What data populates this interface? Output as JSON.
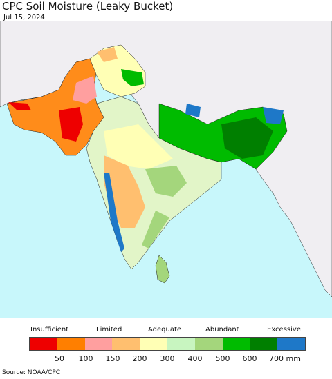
{
  "header": {
    "title": "CPC Soil Moisture (Leaky Bucket)",
    "date": "Jul 15, 2024"
  },
  "legend": {
    "categories": [
      "Insufficient",
      "Limited",
      "Adequate",
      "Abundant",
      "Excessive"
    ],
    "colors": [
      "#ee0000",
      "#ff7f00",
      "#ff9f9f",
      "#ffbf6f",
      "#ffffb5",
      "#c8f5c0",
      "#a4d67c",
      "#00bb00",
      "#007f00",
      "#1e78c8"
    ],
    "ticks": [
      "50",
      "100",
      "150",
      "200",
      "300",
      "400",
      "500",
      "600",
      "700 mm"
    ]
  },
  "map": {
    "ocean_color": "#c8f7fb",
    "land_outside_color": "#f0eef2"
  },
  "footer": {
    "source": "Source: NOAA/CPC"
  }
}
